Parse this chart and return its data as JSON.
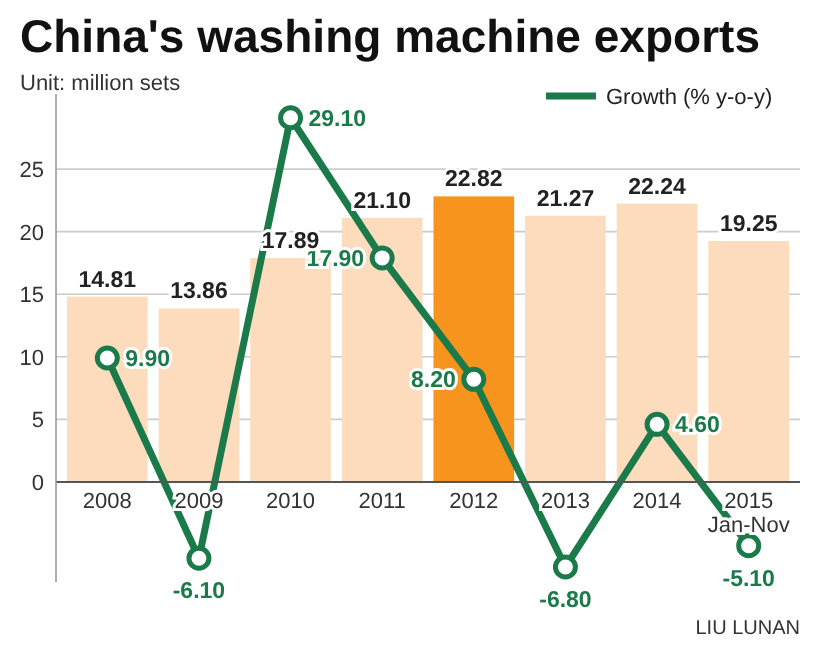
{
  "chart_data": {
    "type": "bar",
    "title": "China's washing machine exports",
    "subtitle": "Unit: million sets",
    "categories": [
      "2008",
      "2009",
      "2010",
      "2011",
      "2012",
      "2013",
      "2014",
      "2015\nJan-Nov"
    ],
    "series": [
      {
        "colors": [
          "#fcdcbc",
          "#fcdcbc",
          "#fcdcbc",
          "#fcdcbc",
          "#f7941d",
          "#fcdcbc",
          "#fcdcbc",
          "#fcdcbc"
        ],
        "values": [
          14.81,
          13.86,
          17.89,
          21.1,
          22.82,
          21.27,
          22.24,
          19.25
        ],
        "value_labels": [
          "14.81",
          "13.86",
          "17.89",
          "21.10",
          "22.82",
          "21.27",
          "22.24",
          "19.25"
        ]
      },
      {
        "type": "line",
        "name": "Growth (% y-o-y)",
        "color": "#1b7a4a",
        "marker": "circle",
        "values": [
          9.9,
          -6.1,
          29.1,
          17.9,
          8.2,
          -6.8,
          4.6,
          -5.1
        ],
        "value_labels": [
          "9.90",
          "-6.10",
          "29.10",
          "17.90",
          "8.20",
          "-6.80",
          "4.60",
          "-5.10"
        ]
      }
    ],
    "ylim": [
      -8,
      31
    ],
    "yticks": [
      0,
      5,
      10,
      15,
      20,
      25
    ],
    "grid": "y",
    "legend": "top right",
    "annotations": [
      "LIU LUNAN"
    ]
  }
}
